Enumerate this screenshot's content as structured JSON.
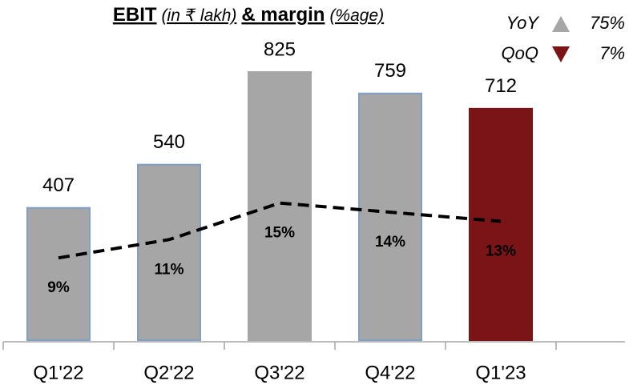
{
  "chart_data": {
    "type": "bar",
    "title": [
      "EBIT",
      "(in ₹ lakh)",
      "& margin",
      "(%age)"
    ],
    "categories": [
      "Q1'22",
      "Q2'22",
      "Q3'22",
      "Q4'22",
      "Q1'23"
    ],
    "series": [
      {
        "name": "EBIT",
        "type": "bar",
        "values": [
          407,
          540,
          825,
          759,
          712
        ],
        "colors": [
          "#a6a6a6",
          "#a6a6a6",
          "#a6a6a6",
          "#a6a6a6",
          "#7b1416"
        ],
        "edge_colors": [
          "#7f9fc4",
          "#7f9fc4",
          "#a6a6a6",
          "#7f9fc4",
          "#7b1416"
        ]
      },
      {
        "name": "margin",
        "type": "line",
        "axis": "y2",
        "values": [
          9,
          11,
          15,
          14,
          13
        ],
        "value_labels": [
          "9%",
          "11%",
          "15%",
          "14%",
          "13%"
        ],
        "color": "#000000",
        "dashed": true
      }
    ],
    "ylim": [
      0,
      900
    ],
    "y2lim": [
      0,
      32
    ],
    "annotations": [
      {
        "label": "YoY",
        "value": 75,
        "value_label": "75%",
        "direction": "up",
        "color": "#a6a6a6"
      },
      {
        "label": "QoQ",
        "value": 7,
        "value_label": "7%",
        "direction": "down",
        "color": "#7b1416"
      }
    ]
  }
}
